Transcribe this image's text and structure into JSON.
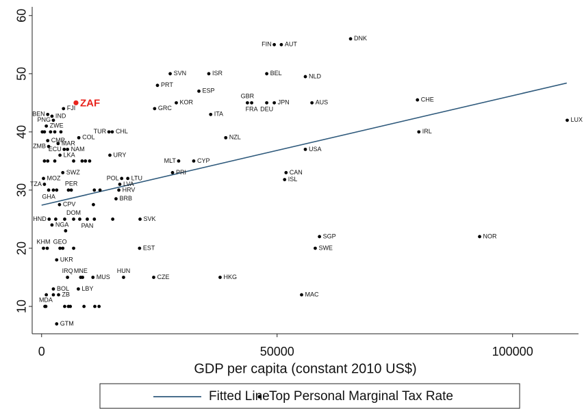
{
  "chart_data": {
    "type": "scatter",
    "xlabel": "GDP per capita (constant 2010 US$)",
    "xlim": [
      -2000,
      114000
    ],
    "ylim": [
      5.3,
      61.5
    ],
    "xticks": [
      0,
      50000,
      100000
    ],
    "yticks": [
      10,
      20,
      30,
      40,
      50,
      60
    ],
    "legend": "bottom",
    "series": [
      {
        "name": "Fitted Line",
        "type": "line",
        "color": "#2f5a7c",
        "x": [
          0,
          111500
        ],
        "y": [
          27.4,
          48.4
        ]
      },
      {
        "name": "Top Personal Marginal Tax Rate",
        "type": "scatter",
        "color": "#000000",
        "x": [
          65600,
          49400,
          50900,
          27300,
          35500,
          47800,
          56000,
          24600,
          33400,
          43700,
          44600,
          47800,
          49400,
          57400,
          28600,
          24000,
          35900,
          79800,
          80100,
          111600,
          39100,
          56000,
          14300,
          15000,
          14500,
          29100,
          32300,
          51900,
          51600,
          27800,
          17000,
          18300,
          16600,
          16400,
          15800,
          20900,
          20800,
          59000,
          58100,
          93000,
          23800,
          37900,
          17400,
          55200,
          4650,
          2200,
          1300,
          2500,
          1000,
          7900,
          1300,
          3500,
          1500,
          4800,
          5500,
          3900,
          4500,
          400,
          600,
          6300,
          1500,
          3800,
          6800,
          1600,
          9700,
          2200,
          400,
          3900,
          3200,
          5500,
          8300,
          10900,
          2500,
          7800,
          3600,
          900,
          3200,
          600,
          1300,
          2800,
          6800,
          8600,
          9300,
          10200,
          150,
          600,
          1900,
          2800,
          4100,
          3200,
          5700,
          11200,
          12400,
          2500,
          4900,
          8100,
          11200,
          15100,
          3000,
          5100,
          6800,
          4500,
          1200,
          4900,
          5700,
          6100,
          9000,
          11300,
          12200,
          700,
          1000,
          2500,
          11000,
          8700
        ],
        "y": [
          56,
          55,
          55,
          50,
          50,
          50,
          49.5,
          48,
          47,
          45,
          45,
          45,
          45,
          45,
          45,
          44,
          43,
          45.5,
          40,
          42,
          39,
          37,
          40,
          40,
          36,
          35,
          35,
          33,
          31.8,
          33,
          32,
          32,
          31,
          30,
          28.5,
          25,
          20,
          22,
          20,
          22,
          15,
          15,
          15,
          12,
          44,
          42.7,
          43,
          42,
          41,
          39,
          38.5,
          38,
          37.5,
          37,
          37,
          36,
          33,
          32,
          31,
          30,
          30,
          27.5,
          25,
          25,
          25,
          24,
          20,
          20,
          18,
          15,
          15,
          15,
          13,
          13,
          12,
          10,
          7,
          35,
          35,
          35,
          35,
          35,
          35,
          35,
          40,
          40,
          40,
          40,
          40,
          30,
          30,
          30,
          30,
          30,
          25,
          25,
          25,
          25,
          25,
          23,
          20,
          20,
          20,
          10,
          10,
          10,
          10,
          10,
          10,
          10,
          12,
          12,
          27.5,
          15
        ],
        "labels": [
          "DNK",
          "FIN",
          "AUT",
          "SVN",
          "ISR",
          "BEL",
          "NLD",
          "PRT",
          "ESP",
          "GBR",
          "FRA",
          "DEU",
          "JPN",
          "AUS",
          "KOR",
          "GRC",
          "ITA",
          "CHE",
          "IRL",
          "LUX",
          "NZL",
          "USA",
          "TUR",
          "CHL",
          "URY",
          "MLT",
          "CYP",
          "CAN",
          "ISL",
          "PRI",
          "POL",
          "LTU",
          "LVA",
          "HRV",
          "BRB",
          "SVK",
          "EST",
          "SGP",
          "SWE",
          "NOR",
          "CZE",
          "HKG",
          "HUN",
          "MAC",
          "FJI",
          "IND",
          "BEN",
          "PNG",
          "ZWE",
          "COL",
          "CMR",
          "MAR",
          "ZMB",
          "ECU",
          "NAM",
          "LKA",
          "SWZ",
          "MOZ",
          "TZA",
          "PER",
          "GHA",
          "CPV",
          "DOM",
          "HND",
          "PAN",
          "NGA",
          "KHM",
          "GEO",
          "UKR",
          "IRQ",
          "MNE",
          "MUS",
          "BOL",
          "LBY",
          "ZB",
          "MDA",
          "GTM",
          null,
          null,
          null,
          null,
          null,
          null,
          null,
          null,
          null,
          null,
          null,
          null,
          null,
          null,
          null,
          null,
          null,
          null,
          null,
          null,
          null,
          null,
          null,
          null,
          null,
          null,
          null,
          null,
          null,
          null,
          null,
          null,
          null,
          null,
          null,
          null
        ]
      }
    ],
    "highlight": {
      "label": "ZAF",
      "x": 7300,
      "y": 45,
      "color": "#e8231c"
    }
  }
}
